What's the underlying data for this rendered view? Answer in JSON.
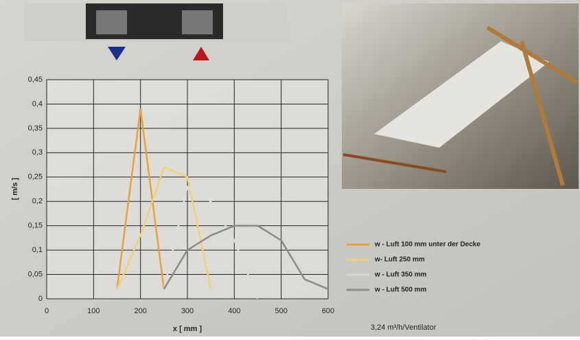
{
  "chart_data": {
    "type": "line",
    "x_label": "x [ mm ]",
    "y_label": "[ m/s ]",
    "annotation": "3,24 m³/h/Ventilator",
    "x": [
      150,
      200,
      250,
      300,
      350,
      400,
      450,
      500,
      550,
      600
    ],
    "series": [
      {
        "name": "w - Luft 100 mm unter der Decke",
        "color": "#e8a23a",
        "values": [
          0.02,
          0.39,
          0.02,
          null,
          null,
          null,
          null,
          null,
          null,
          null
        ]
      },
      {
        "name": "w- Luft 250 mm",
        "color": "#f2d270",
        "values": [
          0.02,
          0.13,
          0.27,
          0.25,
          0.02,
          null,
          null,
          null,
          null,
          null
        ]
      },
      {
        "name": "w - Luft 350 mm",
        "color": "#dcdcd6",
        "values": [
          null,
          null,
          0.02,
          0.23,
          0.2,
          0.12,
          0,
          null,
          null,
          null
        ]
      },
      {
        "name": "w - Luft 500 mm",
        "color": "#8a8a86",
        "values": [
          null,
          null,
          0.02,
          0.1,
          0.13,
          0.15,
          0.15,
          0.12,
          0.04,
          0.02
        ]
      }
    ],
    "xlim": [
      0,
      600
    ],
    "xticks": [
      0,
      100,
      200,
      300,
      400,
      500,
      600
    ],
    "ylim": [
      0,
      0.45
    ],
    "yticks": [
      0,
      {
        "value": 0.05,
        "label": "0,05"
      },
      {
        "value": 0.1,
        "label": "0,1"
      },
      {
        "value": 0.15,
        "label": "0,15"
      },
      {
        "value": 0.2,
        "label": "0,2"
      },
      {
        "value": 0.25,
        "label": "0,25"
      },
      {
        "value": 0.3,
        "label": "0,3"
      },
      {
        "value": 0.35,
        "label": "0,35"
      },
      {
        "value": 0.4,
        "label": "0,4"
      },
      {
        "value": 0.45,
        "label": "0,45"
      }
    ],
    "grid": true
  }
}
